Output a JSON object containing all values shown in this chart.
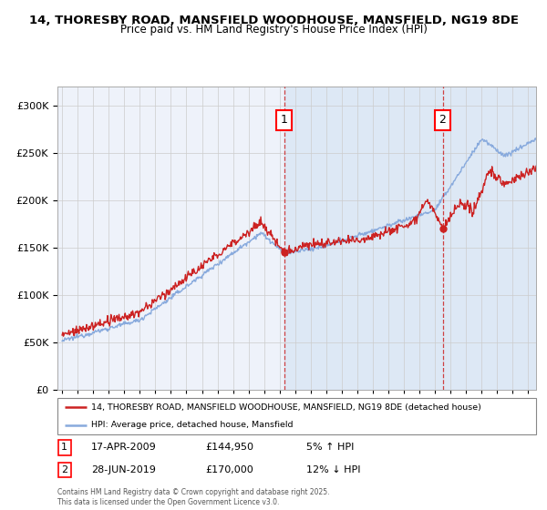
{
  "title_line1": "14, THORESBY ROAD, MANSFIELD WOODHOUSE, MANSFIELD, NG19 8DE",
  "title_line2": "Price paid vs. HM Land Registry's House Price Index (HPI)",
  "background_color": "#ffffff",
  "plot_bg_color": "#eef2fa",
  "grid_color": "#cccccc",
  "hpi_color": "#88aadd",
  "price_color": "#cc2222",
  "shade_color": "#dde8f5",
  "marker1_date_x": 2009.29,
  "marker2_date_x": 2019.49,
  "marker1_price_y": 144950,
  "marker2_price_y": 170000,
  "marker1_label": "17-APR-2009",
  "marker1_price": "£144,950",
  "marker1_hpi": "5% ↑ HPI",
  "marker2_label": "28-JUN-2019",
  "marker2_price": "£170,000",
  "marker2_hpi": "12% ↓ HPI",
  "legend_line1": "14, THORESBY ROAD, MANSFIELD WOODHOUSE, MANSFIELD, NG19 8DE (detached house)",
  "legend_line2": "HPI: Average price, detached house, Mansfield",
  "footer": "Contains HM Land Registry data © Crown copyright and database right 2025.\nThis data is licensed under the Open Government Licence v3.0.",
  "ylim": [
    0,
    320000
  ],
  "yticks": [
    0,
    50000,
    100000,
    150000,
    200000,
    250000,
    300000
  ],
  "xlim": [
    1994.7,
    2025.5
  ]
}
